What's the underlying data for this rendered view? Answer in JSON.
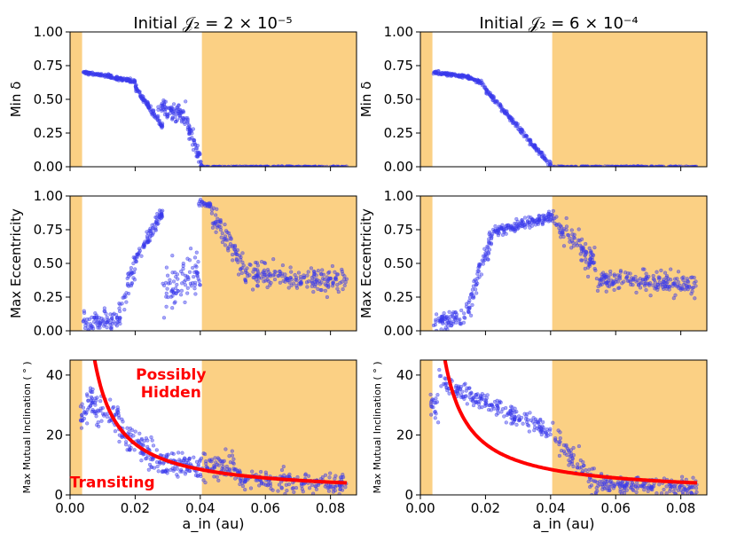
{
  "figure": {
    "titles": [
      "Initial 𝒥₂ = 2 × 10⁻⁵",
      "Initial 𝒥₂ = 6 × 10⁻⁴"
    ],
    "xlabel": "a_in (au)",
    "colors": {
      "shade": "#fbd084",
      "points": "#3a3aec",
      "curve": "#ff0000",
      "annotation": "#ff0000"
    }
  },
  "chart_data": [
    {
      "type": "scatter",
      "id": "p00",
      "title": "Initial 𝒥₂ = 2 × 10⁻⁵",
      "ylabel": "Min δ",
      "xlabel": "",
      "xlim": [
        0,
        0.088
      ],
      "ylim": [
        0,
        1
      ],
      "xticks": [
        "0.00",
        "0.02",
        "0.04",
        "0.06",
        "0.08"
      ],
      "xtick_values": [
        0,
        0.02,
        0.04,
        0.06,
        0.08
      ],
      "show_xticklabels": false,
      "yticks": [
        "0.00",
        "0.25",
        "0.50",
        "0.75",
        "1.00"
      ],
      "ytick_values": [
        0,
        0.25,
        0.5,
        0.75,
        1.0
      ],
      "shaded_x": [
        [
          0,
          0.0037
        ],
        [
          0.0405,
          0.088
        ]
      ],
      "series": [
        {
          "name": "simulations",
          "kind": "scatter",
          "segments": [
            {
              "x": [
                0.004,
                0.0095
              ],
              "y": [
                0.7,
                0.68
              ],
              "n": 50,
              "spread": 0.006
            },
            {
              "x": [
                0.0095,
                0.02
              ],
              "y": [
                0.68,
                0.63
              ],
              "n": 90,
              "spread": 0.008
            },
            {
              "x": [
                0.02,
                0.0285
              ],
              "y": [
                0.59,
                0.3
              ],
              "n": 90,
              "spread": 0.012
            },
            {
              "x": [
                0.027,
                0.0355
              ],
              "y": [
                0.42,
                0.4
              ],
              "n": 80,
              "spread": 0.04
            },
            {
              "x": [
                0.0355,
                0.0405
              ],
              "y": [
                0.36,
                0.02
              ],
              "n": 55,
              "spread": 0.03
            },
            {
              "x": [
                0.0405,
                0.085
              ],
              "y": [
                0.0,
                0.0
              ],
              "n": 150,
              "spread": 0.002
            }
          ]
        }
      ]
    },
    {
      "type": "scatter",
      "id": "p01",
      "title": "Initial 𝒥₂ = 6 × 10⁻⁴",
      "ylabel": "Min δ",
      "xlabel": "",
      "xlim": [
        0,
        0.088
      ],
      "ylim": [
        0,
        1
      ],
      "xticks": [
        "0.00",
        "0.02",
        "0.04",
        "0.06",
        "0.08"
      ],
      "xtick_values": [
        0,
        0.02,
        0.04,
        0.06,
        0.08
      ],
      "show_xticklabels": false,
      "yticks": [
        "0.00",
        "0.25",
        "0.50",
        "0.75",
        "1.00"
      ],
      "ytick_values": [
        0,
        0.25,
        0.5,
        0.75,
        1.0
      ],
      "shaded_x": [
        [
          0,
          0.0037
        ],
        [
          0.0405,
          0.088
        ]
      ],
      "series": [
        {
          "name": "simulations",
          "kind": "scatter",
          "segments": [
            {
              "x": [
                0.004,
                0.014
              ],
              "y": [
                0.7,
                0.67
              ],
              "n": 90,
              "spread": 0.006
            },
            {
              "x": [
                0.014,
                0.019
              ],
              "y": [
                0.67,
                0.62
              ],
              "n": 50,
              "spread": 0.008
            },
            {
              "x": [
                0.019,
                0.0405
              ],
              "y": [
                0.6,
                0.0
              ],
              "n": 170,
              "spread": 0.01
            },
            {
              "x": [
                0.0405,
                0.085
              ],
              "y": [
                0.0,
                0.0
              ],
              "n": 150,
              "spread": 0.002
            }
          ]
        }
      ]
    },
    {
      "type": "scatter",
      "id": "p10",
      "title": "",
      "ylabel": "Max Eccentricity",
      "xlabel": "",
      "xlim": [
        0,
        0.088
      ],
      "ylim": [
        0,
        1
      ],
      "xticks": [
        "0.00",
        "0.02",
        "0.04",
        "0.06",
        "0.08"
      ],
      "xtick_values": [
        0,
        0.02,
        0.04,
        0.06,
        0.08
      ],
      "show_xticklabels": false,
      "yticks": [
        "0.00",
        "0.25",
        "0.50",
        "0.75",
        "1.00"
      ],
      "ytick_values": [
        0,
        0.25,
        0.5,
        0.75,
        1.0
      ],
      "shaded_x": [
        [
          0,
          0.0037
        ],
        [
          0.0405,
          0.088
        ]
      ],
      "series": [
        {
          "name": "simulations",
          "kind": "scatter",
          "segments": [
            {
              "x": [
                0.004,
                0.015
              ],
              "y": [
                0.07,
                0.07
              ],
              "n": 80,
              "spread": 0.04
            },
            {
              "x": [
                0.015,
                0.0205
              ],
              "y": [
                0.12,
                0.55
              ],
              "n": 45,
              "spread": 0.05
            },
            {
              "x": [
                0.0205,
                0.0285
              ],
              "y": [
                0.55,
                0.88
              ],
              "n": 75,
              "spread": 0.025
            },
            {
              "x": [
                0.0285,
                0.04
              ],
              "y": [
                0.32,
                0.45
              ],
              "n": 85,
              "spread": 0.09
            },
            {
              "x": [
                0.0395,
                0.0435
              ],
              "y": [
                0.95,
                0.93
              ],
              "n": 25,
              "spread": 0.01
            },
            {
              "x": [
                0.0435,
                0.053
              ],
              "y": [
                0.88,
                0.48
              ],
              "n": 70,
              "spread": 0.05
            },
            {
              "x": [
                0.053,
                0.085
              ],
              "y": [
                0.42,
                0.36
              ],
              "n": 190,
              "spread": 0.045
            }
          ]
        }
      ]
    },
    {
      "type": "scatter",
      "id": "p11",
      "title": "",
      "ylabel": "Max Eccentricity",
      "xlabel": "",
      "xlim": [
        0,
        0.088
      ],
      "ylim": [
        0,
        1
      ],
      "xticks": [
        "0.00",
        "0.02",
        "0.04",
        "0.06",
        "0.08"
      ],
      "xtick_values": [
        0,
        0.02,
        0.04,
        0.06,
        0.08
      ],
      "show_xticklabels": false,
      "yticks": [
        "0.00",
        "0.25",
        "0.50",
        "0.75",
        "1.00"
      ],
      "ytick_values": [
        0,
        0.25,
        0.5,
        0.75,
        1.0
      ],
      "shaded_x": [
        [
          0,
          0.0037
        ],
        [
          0.0405,
          0.088
        ]
      ],
      "series": [
        {
          "name": "simulations",
          "kind": "scatter",
          "segments": [
            {
              "x": [
                0.004,
                0.014
              ],
              "y": [
                0.08,
                0.08
              ],
              "n": 70,
              "spread": 0.04
            },
            {
              "x": [
                0.014,
                0.0175
              ],
              "y": [
                0.12,
                0.35
              ],
              "n": 30,
              "spread": 0.06
            },
            {
              "x": [
                0.0175,
                0.0225
              ],
              "y": [
                0.4,
                0.72
              ],
              "n": 45,
              "spread": 0.04
            },
            {
              "x": [
                0.0225,
                0.041
              ],
              "y": [
                0.74,
                0.85
              ],
              "n": 140,
              "spread": 0.02
            },
            {
              "x": [
                0.041,
                0.054
              ],
              "y": [
                0.83,
                0.48
              ],
              "n": 90,
              "spread": 0.05
            },
            {
              "x": [
                0.054,
                0.085
              ],
              "y": [
                0.38,
                0.34
              ],
              "n": 190,
              "spread": 0.04
            }
          ]
        }
      ]
    },
    {
      "type": "scatter",
      "id": "p20",
      "title": "",
      "ylabel": "Max Mutual Inclination ( ° )",
      "xlabel": "a_in (au)",
      "xlim": [
        0,
        0.088
      ],
      "ylim": [
        0,
        45
      ],
      "xticks": [
        "0.00",
        "0.02",
        "0.04",
        "0.06",
        "0.08"
      ],
      "xtick_values": [
        0,
        0.02,
        0.04,
        0.06,
        0.08
      ],
      "show_xticklabels": true,
      "yticks": [
        "0",
        "20",
        "40"
      ],
      "ytick_values": [
        0,
        20,
        40
      ],
      "shaded_x": [
        [
          0,
          0.0037
        ],
        [
          0.0405,
          0.088
        ]
      ],
      "annotations": [
        {
          "text": "Possibly",
          "x": 0.031,
          "y": 38.5
        },
        {
          "text": "Hidden",
          "x": 0.031,
          "y": 32.5
        },
        {
          "text": "Transiting",
          "x": 0.013,
          "y": 2.5
        }
      ],
      "series": [
        {
          "name": "transit boundary",
          "kind": "curve",
          "formula": "0.34/x",
          "x_range": [
            0.0045,
            0.085
          ]
        },
        {
          "name": "simulations",
          "kind": "scatter",
          "segments": [
            {
              "x": [
                0.003,
                0.0055
              ],
              "y": [
                27,
                27
              ],
              "n": 20,
              "spread": 2.5
            },
            {
              "x": [
                0.0055,
                0.015
              ],
              "y": [
                32,
                25
              ],
              "n": 70,
              "spread": 2.5
            },
            {
              "x": [
                0.015,
                0.027
              ],
              "y": [
                22,
                12
              ],
              "n": 90,
              "spread": 2.5
            },
            {
              "x": [
                0.027,
                0.04
              ],
              "y": [
                11,
                9
              ],
              "n": 90,
              "spread": 2
            },
            {
              "x": [
                0.04,
                0.051
              ],
              "y": [
                10,
                10
              ],
              "n": 70,
              "spread": 2.2
            },
            {
              "x": [
                0.051,
                0.085
              ],
              "y": [
                6,
                3
              ],
              "n": 180,
              "spread": 1.8
            }
          ]
        }
      ]
    },
    {
      "type": "scatter",
      "id": "p21",
      "title": "",
      "ylabel": "Max Mutual Inclination ( ° )",
      "xlabel": "a_in (au)",
      "xlim": [
        0,
        0.088
      ],
      "ylim": [
        0,
        45
      ],
      "xticks": [
        "0.00",
        "0.02",
        "0.04",
        "0.06",
        "0.08"
      ],
      "xtick_values": [
        0,
        0.02,
        0.04,
        0.06,
        0.08
      ],
      "show_xticklabels": true,
      "yticks": [
        "0",
        "20",
        "40"
      ],
      "ytick_values": [
        0,
        20,
        40
      ],
      "shaded_x": [
        [
          0,
          0.0037
        ],
        [
          0.0405,
          0.088
        ]
      ],
      "series": [
        {
          "name": "transit boundary",
          "kind": "curve",
          "formula": "0.34/x",
          "x_range": [
            0.0045,
            0.085
          ]
        },
        {
          "name": "simulations",
          "kind": "scatter",
          "segments": [
            {
              "x": [
                0.003,
                0.0055
              ],
              "y": [
                29,
                29
              ],
              "n": 20,
              "spread": 2.5
            },
            {
              "x": [
                0.0055,
                0.04
              ],
              "y": [
                38,
                21
              ],
              "n": 200,
              "spread": 1.6
            },
            {
              "x": [
                0.04,
                0.055
              ],
              "y": [
                20,
                4
              ],
              "n": 70,
              "spread": 2.5
            },
            {
              "x": [
                0.055,
                0.085
              ],
              "y": [
                4,
                2.5
              ],
              "n": 170,
              "spread": 1.5
            }
          ]
        }
      ]
    }
  ]
}
